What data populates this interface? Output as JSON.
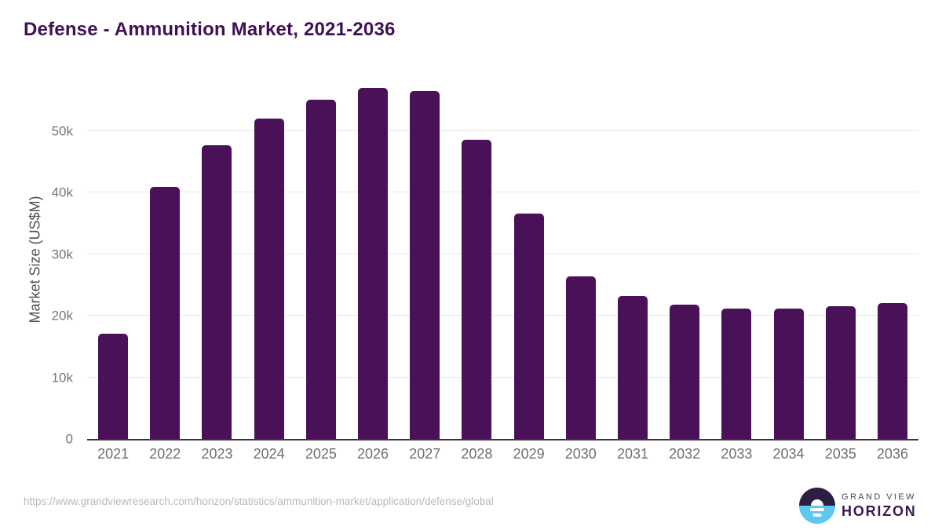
{
  "chart_data": {
    "type": "bar",
    "title": "Defense - Ammunition Market, 2021-2036",
    "xlabel": "",
    "ylabel": "Market Size (US$M)",
    "categories": [
      "2021",
      "2022",
      "2023",
      "2024",
      "2025",
      "2026",
      "2027",
      "2028",
      "2029",
      "2030",
      "2031",
      "2032",
      "2033",
      "2034",
      "2035",
      "2036"
    ],
    "values": [
      17100,
      40900,
      47700,
      52000,
      55100,
      57000,
      56400,
      48500,
      36600,
      26400,
      23200,
      21800,
      21200,
      21100,
      21500,
      22000
    ],
    "ylim": [
      0,
      58500
    ],
    "yticks": [
      {
        "value": 0,
        "label": "0"
      },
      {
        "value": 10000,
        "label": "10k"
      },
      {
        "value": 20000,
        "label": "20k"
      },
      {
        "value": 30000,
        "label": "30k"
      },
      {
        "value": 40000,
        "label": "40k"
      },
      {
        "value": 50000,
        "label": "50k"
      }
    ],
    "grid": "horizontal",
    "legend": "none",
    "bar_color": "#4a1158",
    "title_color": "#3f1154",
    "axis_line_color": "#383838",
    "gridline_color": "#e7e7e7"
  },
  "footer": {
    "source_url": "https://www.grandviewresearch.com/horizon/statistics/ammunition-market/application/defense/global",
    "brand": {
      "line1": "GRAND VIEW",
      "line2": "HORIZON",
      "mark_top_color": "#2b1e41",
      "mark_bottom_color": "#5ec7f2"
    }
  }
}
